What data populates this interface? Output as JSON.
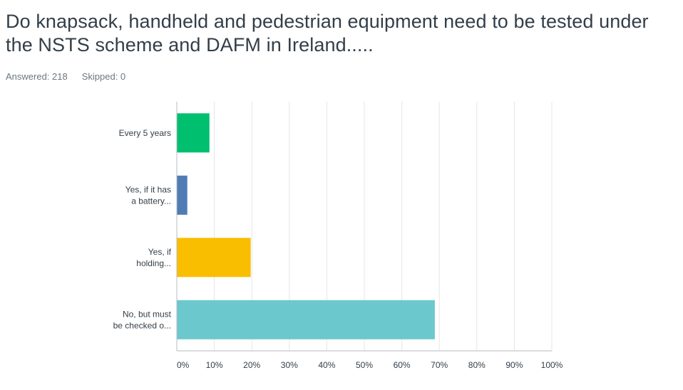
{
  "question": {
    "title_line1": "Do knapsack, handheld and pedestrian equipment need to be tested under",
    "title_line2": "the NSTS scheme and DAFM in Ireland....."
  },
  "stats": {
    "answered": "Answered: 218",
    "skipped": "Skipped: 0"
  },
  "chart_data": {
    "type": "bar",
    "orientation": "horizontal",
    "title": "",
    "xlabel": "",
    "ylabel": "",
    "xlim": [
      0,
      100
    ],
    "grid": true,
    "categories": [
      [
        "Every 5 years"
      ],
      [
        "Yes, if it has",
        "a battery..."
      ],
      [
        "Yes, if",
        "holding..."
      ],
      [
        "No, but must",
        "be checked o..."
      ]
    ],
    "values": [
      8.7,
      2.8,
      19.7,
      68.8
    ],
    "colors": [
      "#00bf6f",
      "#507cb6",
      "#f9be00",
      "#6bc8cd"
    ],
    "ticks": [
      0,
      10,
      20,
      30,
      40,
      50,
      60,
      70,
      80,
      90,
      100
    ],
    "tick_labels": [
      "0%",
      "10%",
      "20%",
      "30%",
      "40%",
      "50%",
      "60%",
      "70%",
      "80%",
      "90%",
      "100%"
    ],
    "grid_color": "#e4e6e8",
    "axis_color": "#b7bdc1"
  }
}
